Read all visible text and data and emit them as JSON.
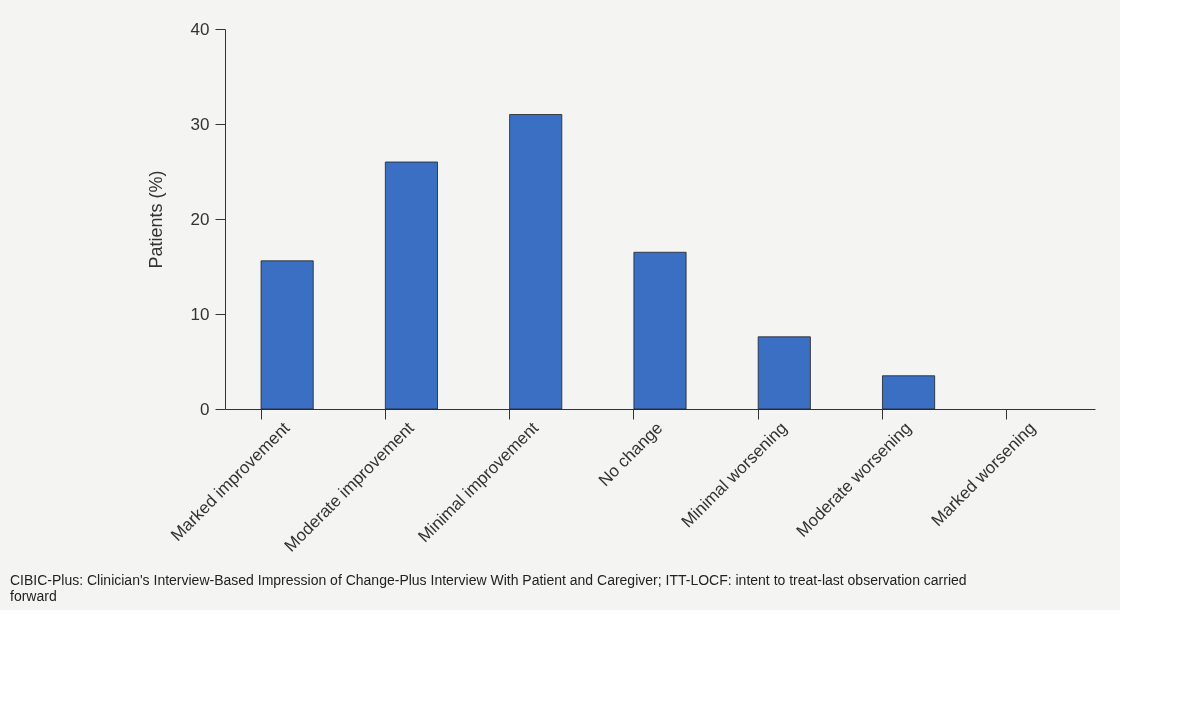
{
  "chart_data": {
    "type": "bar",
    "ylabel": "Patients (%)",
    "categories": [
      "Marked improvement",
      "Moderate improvement",
      "Minimal improvement",
      "No change",
      "Minimal worsening",
      "Moderate worsening",
      "Marked worsening"
    ],
    "values": [
      15.6,
      26.0,
      31.0,
      16.5,
      7.6,
      3.5,
      0
    ],
    "color": "#3a6fc4",
    "ylim": [
      0,
      40
    ],
    "yticks": [
      0,
      10,
      20,
      30,
      40
    ],
    "grid": false,
    "annotations": [
      "CIBIC-Plus: Clinician's Interview-Based Impression of Change-Plus Interview With Patient and Caregiver; ITT-LOCF: intent to treat-last observation carried forward"
    ]
  }
}
